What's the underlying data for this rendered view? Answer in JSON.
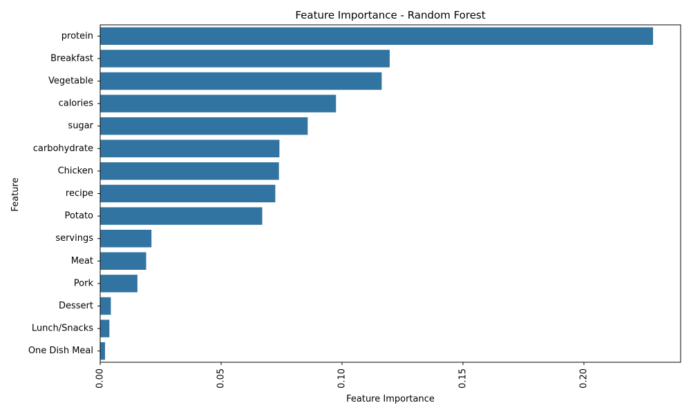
{
  "chart_data": {
    "type": "bar",
    "orientation": "horizontal",
    "title": "Feature Importance - Random Forest",
    "xlabel": "Feature Importance",
    "ylabel": "Feature",
    "categories": [
      "protein",
      "Breakfast",
      "Vegetable",
      "calories",
      "sugar",
      "carbohydrate",
      "Chicken",
      "recipe",
      "Potato",
      "servings",
      "Meat",
      "Pork",
      "Dessert",
      "Lunch/Snacks",
      "One Dish Meal"
    ],
    "values": [
      0.2286,
      0.1197,
      0.1164,
      0.0975,
      0.0858,
      0.0741,
      0.0739,
      0.0724,
      0.067,
      0.0212,
      0.019,
      0.0154,
      0.0044,
      0.0038,
      0.002
    ],
    "xticks": [
      0.0,
      0.05,
      0.1,
      0.15,
      0.2
    ],
    "xtick_labels": [
      "0.00",
      "0.05",
      "0.10",
      "0.15",
      "0.20"
    ],
    "xlim": [
      0,
      0.24
    ],
    "grid": false,
    "legend": "none",
    "bar_color": "#3274a1",
    "xtick_rotation": "vertical"
  }
}
